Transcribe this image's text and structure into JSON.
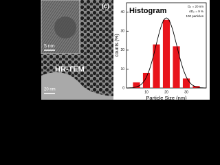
{
  "tem": {
    "panel_label": "(c)",
    "inset_scale": "5 nm",
    "method": "HR-TEM",
    "scale": "20 nm"
  },
  "chart_data": {
    "type": "bar",
    "title": "Histogram",
    "annotations": [
      "Dₚ = 20 nm",
      "σDₚ = 9 %",
      "100 particles"
    ],
    "x": [
      5,
      10,
      15,
      20,
      25,
      30,
      35
    ],
    "values": [
      3,
      8,
      23,
      36,
      22,
      5,
      1
    ],
    "color": "#e8141b",
    "x_label": "Particle Size (nm)",
    "y_label": "counts (%)",
    "xlim": [
      0,
      40
    ],
    "xticks": [
      10,
      20,
      30
    ],
    "ylim": [
      0,
      45
    ],
    "yticks": [
      0,
      10,
      20,
      30,
      40
    ]
  }
}
